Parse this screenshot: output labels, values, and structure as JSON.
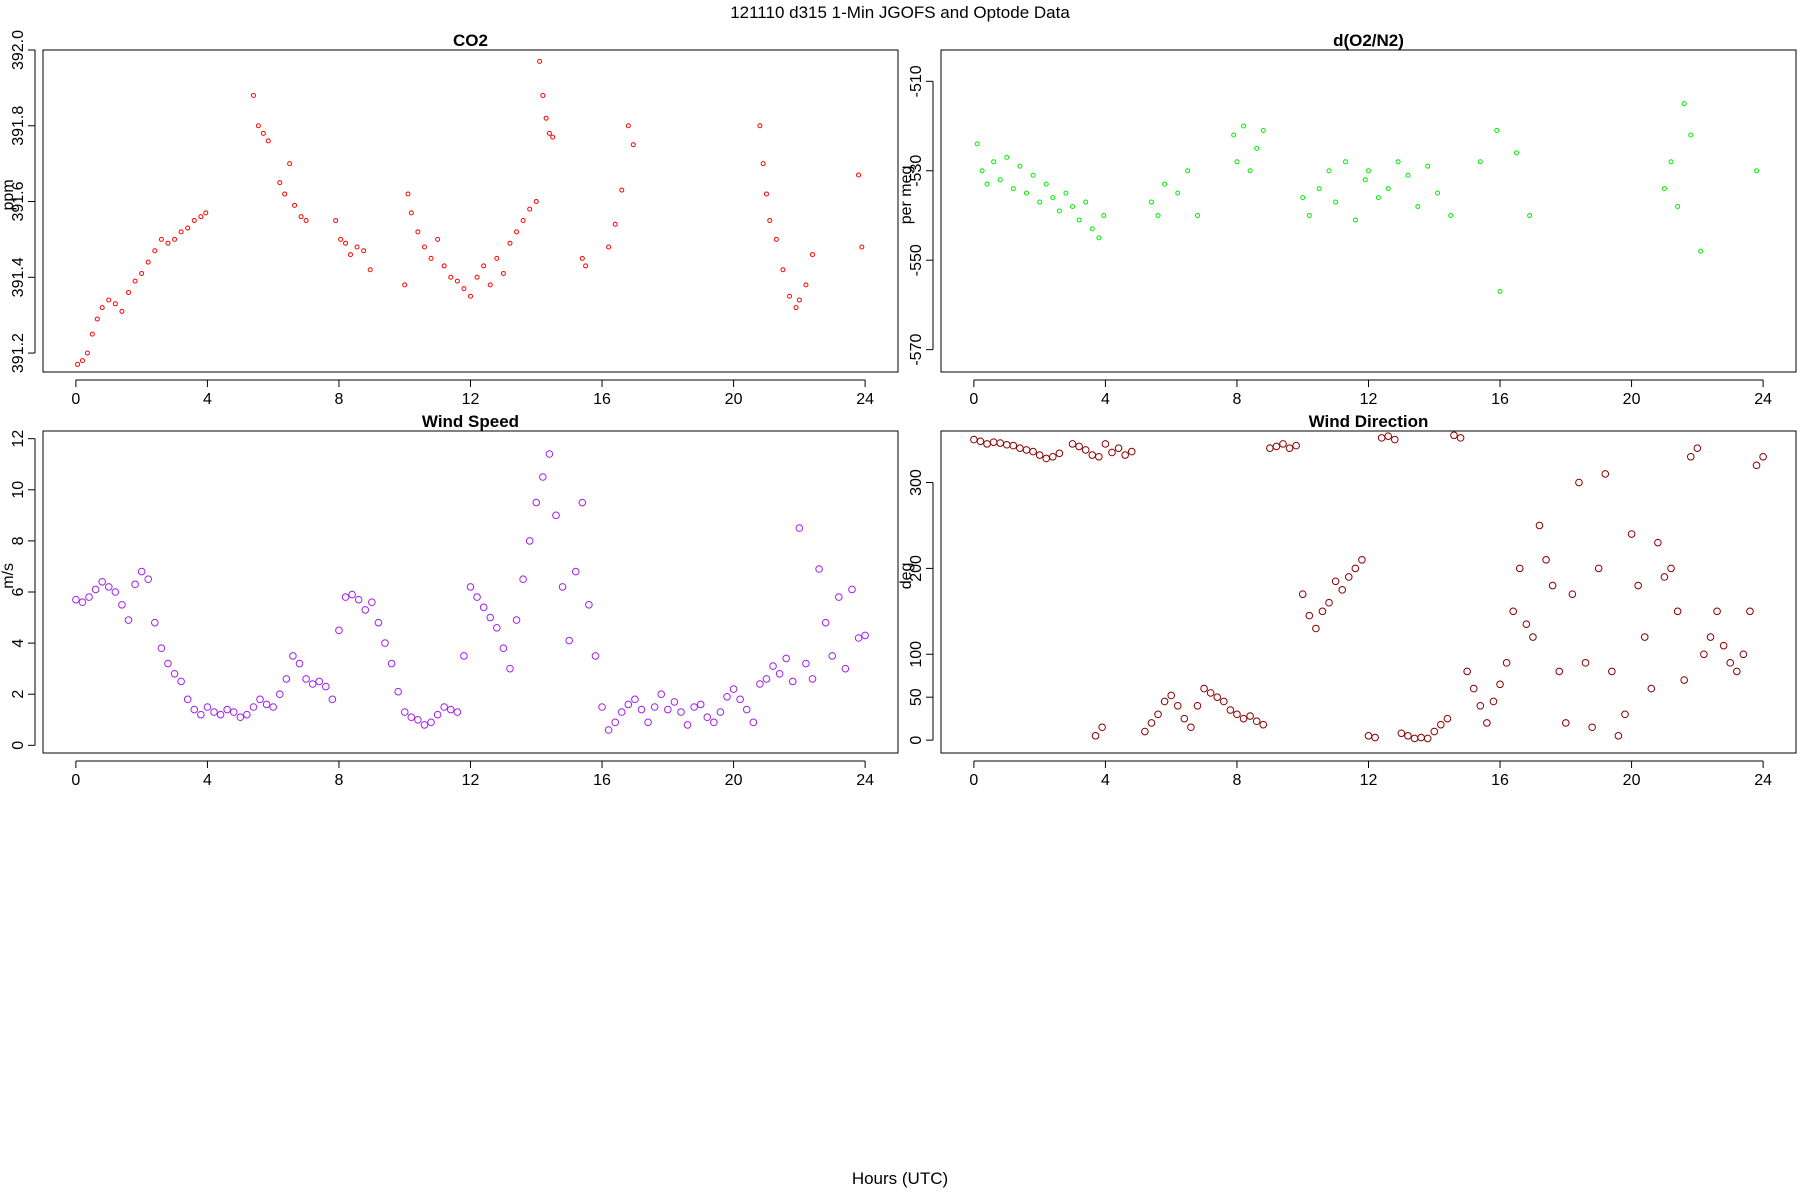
{
  "figure": {
    "title": "121110   d315   1-Min  JGOFS and Optode Data",
    "xlabel": "Hours (UTC)"
  },
  "chart_data": [
    {
      "type": "scatter",
      "title": "CO2",
      "ylabel": "ppm",
      "xlim": [
        -1,
        25
      ],
      "ylim": [
        391.15,
        392.0
      ],
      "xticks": [
        0,
        4,
        8,
        12,
        16,
        20,
        24
      ],
      "yticks": [
        391.2,
        391.4,
        391.6,
        391.8,
        392.0
      ],
      "ytick_labels": [
        "391.2",
        "391.4",
        "391.6",
        "391.8",
        "392.0"
      ],
      "color": "#ff0000",
      "marker_radius": 2,
      "series": [
        {
          "x": [
            0.05,
            0.2,
            0.35,
            0.5,
            0.65,
            0.8,
            1.0,
            1.2,
            1.4,
            1.6,
            1.8,
            2.0,
            2.2,
            2.4,
            2.6,
            2.8,
            3.0,
            3.2,
            3.4,
            3.6,
            3.8,
            3.95,
            5.4,
            5.55,
            5.7,
            5.85,
            6.2,
            6.35,
            6.5,
            6.65,
            6.85,
            7.0,
            7.9,
            8.05,
            8.2,
            8.35,
            8.55,
            8.75,
            8.95,
            10.0,
            10.1,
            10.2,
            10.4,
            10.6,
            10.8,
            11.0,
            11.2,
            11.4,
            11.6,
            11.8,
            12.0,
            12.2,
            12.4,
            12.6,
            12.8,
            13.0,
            13.2,
            13.4,
            13.6,
            13.8,
            14.0,
            14.1,
            14.2,
            14.3,
            14.4,
            14.5,
            15.4,
            15.5,
            16.2,
            16.4,
            16.6,
            16.8,
            16.95,
            20.8,
            20.9,
            21.0,
            21.1,
            21.3,
            21.5,
            21.7,
            21.9,
            22.0,
            22.2,
            22.4,
            23.8,
            23.9
          ],
          "y": [
            391.17,
            391.18,
            391.2,
            391.25,
            391.29,
            391.32,
            391.34,
            391.33,
            391.31,
            391.36,
            391.39,
            391.41,
            391.44,
            391.47,
            391.5,
            391.49,
            391.5,
            391.52,
            391.53,
            391.55,
            391.56,
            391.57,
            391.88,
            391.8,
            391.78,
            391.76,
            391.65,
            391.62,
            391.7,
            391.59,
            391.56,
            391.55,
            391.55,
            391.5,
            391.49,
            391.46,
            391.48,
            391.47,
            391.42,
            391.38,
            391.62,
            391.57,
            391.52,
            391.48,
            391.45,
            391.5,
            391.43,
            391.4,
            391.39,
            391.37,
            391.35,
            391.4,
            391.43,
            391.38,
            391.45,
            391.41,
            391.49,
            391.52,
            391.55,
            391.58,
            391.6,
            391.97,
            391.88,
            391.82,
            391.78,
            391.77,
            391.45,
            391.43,
            391.48,
            391.54,
            391.63,
            391.8,
            391.75,
            391.8,
            391.7,
            391.62,
            391.55,
            391.5,
            391.42,
            391.35,
            391.32,
            391.34,
            391.38,
            391.46,
            391.67,
            391.48
          ]
        }
      ]
    },
    {
      "type": "scatter",
      "title": "d(O2/N2)",
      "ylabel": "per meg",
      "xlim": [
        -1,
        25
      ],
      "ylim": [
        -575,
        -503
      ],
      "xticks": [
        0,
        4,
        8,
        12,
        16,
        20,
        24
      ],
      "yticks": [
        -510,
        -530,
        -550,
        -570
      ],
      "ytick_labels": [
        "-510",
        "-530",
        "-550",
        "-570"
      ],
      "color": "#00ee00",
      "marker_radius": 2,
      "series": [
        {
          "x": [
            0.1,
            0.25,
            0.4,
            0.6,
            0.8,
            1.0,
            1.2,
            1.4,
            1.6,
            1.8,
            2.0,
            2.2,
            2.4,
            2.6,
            2.8,
            3.0,
            3.2,
            3.4,
            3.6,
            3.8,
            3.95,
            5.4,
            5.6,
            5.8,
            6.2,
            6.5,
            6.8,
            7.9,
            8.0,
            8.2,
            8.4,
            8.6,
            8.8,
            10.0,
            10.2,
            10.5,
            10.8,
            11.0,
            11.3,
            11.6,
            11.9,
            12.0,
            12.3,
            12.6,
            12.9,
            13.2,
            13.5,
            13.8,
            14.1,
            14.5,
            15.4,
            15.9,
            16.0,
            16.5,
            16.9,
            21.0,
            21.2,
            21.4,
            21.6,
            21.8,
            22.1,
            23.8
          ],
          "y": [
            -524,
            -530,
            -533,
            -528,
            -532,
            -527,
            -534,
            -529,
            -535,
            -531,
            -537,
            -533,
            -536,
            -539,
            -535,
            -538,
            -541,
            -537,
            -543,
            -545,
            -540,
            -537,
            -540,
            -533,
            -535,
            -530,
            -540,
            -522,
            -528,
            -520,
            -530,
            -525,
            -521,
            -536,
            -540,
            -534,
            -530,
            -537,
            -528,
            -541,
            -532,
            -530,
            -536,
            -534,
            -528,
            -531,
            -538,
            -529,
            -535,
            -540,
            -528,
            -521,
            -557,
            -526,
            -540,
            -534,
            -528,
            -538,
            -515,
            -522,
            -548,
            -530
          ]
        }
      ]
    },
    {
      "type": "scatter",
      "title": "Wind Speed",
      "ylabel": "m/s",
      "xlim": [
        -1,
        25
      ],
      "ylim": [
        -0.3,
        12.3
      ],
      "xticks": [
        0,
        4,
        8,
        12,
        16,
        20,
        24
      ],
      "yticks": [
        0,
        2,
        4,
        6,
        8,
        10,
        12
      ],
      "ytick_labels": [
        "0",
        "2",
        "4",
        "6",
        "8",
        "10",
        "12"
      ],
      "color": "#a020f0",
      "marker_radius": 3.3,
      "series": [
        {
          "x": [
            0.0,
            0.2,
            0.4,
            0.6,
            0.8,
            1.0,
            1.2,
            1.4,
            1.6,
            1.8,
            2.0,
            2.2,
            2.4,
            2.6,
            2.8,
            3.0,
            3.2,
            3.4,
            3.6,
            3.8,
            4.0,
            4.2,
            4.4,
            4.6,
            4.8,
            5.0,
            5.2,
            5.4,
            5.6,
            5.8,
            6.0,
            6.2,
            6.4,
            6.6,
            6.8,
            7.0,
            7.2,
            7.4,
            7.6,
            7.8,
            8.0,
            8.2,
            8.4,
            8.6,
            8.8,
            9.0,
            9.2,
            9.4,
            9.6,
            9.8,
            10.0,
            10.2,
            10.4,
            10.6,
            10.8,
            11.0,
            11.2,
            11.4,
            11.6,
            11.8,
            12.0,
            12.2,
            12.4,
            12.6,
            12.8,
            13.0,
            13.2,
            13.4,
            13.6,
            13.8,
            14.0,
            14.2,
            14.4,
            14.6,
            14.8,
            15.0,
            15.2,
            15.4,
            15.6,
            15.8,
            16.0,
            16.2,
            16.4,
            16.6,
            16.8,
            17.0,
            17.2,
            17.4,
            17.6,
            17.8,
            18.0,
            18.2,
            18.4,
            18.6,
            18.8,
            19.0,
            19.2,
            19.4,
            19.6,
            19.8,
            20.0,
            20.2,
            20.4,
            20.6,
            20.8,
            21.0,
            21.2,
            21.4,
            21.6,
            21.8,
            22.0,
            22.2,
            22.4,
            22.6,
            22.8,
            23.0,
            23.2,
            23.4,
            23.6,
            23.8,
            24.0
          ],
          "y": [
            5.7,
            5.6,
            5.8,
            6.1,
            6.4,
            6.2,
            6.0,
            5.5,
            4.9,
            6.3,
            6.8,
            6.5,
            4.8,
            3.8,
            3.2,
            2.8,
            2.5,
            1.8,
            1.4,
            1.2,
            1.5,
            1.3,
            1.2,
            1.4,
            1.3,
            1.1,
            1.2,
            1.5,
            1.8,
            1.6,
            1.5,
            2.0,
            2.6,
            3.5,
            3.2,
            2.6,
            2.4,
            2.5,
            2.3,
            1.8,
            4.5,
            5.8,
            5.9,
            5.7,
            5.3,
            5.6,
            4.8,
            4.0,
            3.2,
            2.1,
            1.3,
            1.1,
            1.0,
            0.8,
            0.9,
            1.2,
            1.5,
            1.4,
            1.3,
            3.5,
            6.2,
            5.8,
            5.4,
            5.0,
            4.6,
            3.8,
            3.0,
            4.9,
            6.5,
            8.0,
            9.5,
            10.5,
            11.4,
            9.0,
            6.2,
            4.1,
            6.8,
            9.5,
            5.5,
            3.5,
            1.5,
            0.6,
            0.9,
            1.3,
            1.6,
            1.8,
            1.4,
            0.9,
            1.5,
            2.0,
            1.4,
            1.7,
            1.3,
            0.8,
            1.5,
            1.6,
            1.1,
            0.9,
            1.3,
            1.9,
            2.2,
            1.8,
            1.4,
            0.9,
            2.4,
            2.6,
            3.1,
            2.8,
            3.4,
            2.5,
            8.5,
            3.2,
            2.6,
            6.9,
            4.8,
            3.5,
            5.8,
            3.0,
            6.1,
            4.2,
            4.3
          ]
        }
      ]
    },
    {
      "type": "scatter",
      "title": "Wind Direction",
      "ylabel": "deg",
      "xlim": [
        -1,
        25
      ],
      "ylim": [
        -15,
        360
      ],
      "xticks": [
        0,
        4,
        8,
        12,
        16,
        20,
        24
      ],
      "yticks": [
        0,
        50,
        100,
        200,
        300
      ],
      "ytick_labels": [
        "0",
        "50",
        "100",
        "200",
        "300"
      ],
      "color": "#8b0000",
      "marker_radius": 3.3,
      "series": [
        {
          "x": [
            0.0,
            0.2,
            0.4,
            0.6,
            0.8,
            1.0,
            1.2,
            1.4,
            1.6,
            1.8,
            2.0,
            2.2,
            2.4,
            2.6,
            3.0,
            3.2,
            3.4,
            3.6,
            3.8,
            3.7,
            3.9,
            4.0,
            4.2,
            4.4,
            4.6,
            4.8,
            5.2,
            5.4,
            5.6,
            5.8,
            6.0,
            6.2,
            6.4,
            6.6,
            6.8,
            7.0,
            7.2,
            7.4,
            7.6,
            7.8,
            8.0,
            8.2,
            8.4,
            8.6,
            8.8,
            9.0,
            9.2,
            9.4,
            9.6,
            9.8,
            10.0,
            10.2,
            10.4,
            10.6,
            10.8,
            11.0,
            11.2,
            11.4,
            11.6,
            11.8,
            12.0,
            12.2,
            12.4,
            12.6,
            12.8,
            13.0,
            13.2,
            13.4,
            13.6,
            13.8,
            14.0,
            14.2,
            14.4,
            14.6,
            14.8,
            15.0,
            15.2,
            15.4,
            15.6,
            15.8,
            16.0,
            16.2,
            16.4,
            16.6,
            16.8,
            17.0,
            17.2,
            17.4,
            17.6,
            17.8,
            18.0,
            18.2,
            18.4,
            18.6,
            18.8,
            19.0,
            19.2,
            19.4,
            19.6,
            19.8,
            20.0,
            20.2,
            20.4,
            20.6,
            20.8,
            21.0,
            21.2,
            21.4,
            21.6,
            21.8,
            22.0,
            22.2,
            22.4,
            22.6,
            22.8,
            23.0,
            23.2,
            23.4,
            23.6,
            23.8,
            24.0
          ],
          "y": [
            350,
            348,
            345,
            347,
            346,
            344,
            343,
            340,
            338,
            336,
            332,
            328,
            330,
            334,
            345,
            342,
            338,
            332,
            330,
            5,
            15,
            345,
            335,
            340,
            332,
            336,
            10,
            20,
            30,
            45,
            52,
            40,
            25,
            15,
            40,
            60,
            55,
            50,
            45,
            35,
            30,
            25,
            28,
            22,
            18,
            340,
            342,
            345,
            340,
            343,
            170,
            145,
            130,
            150,
            160,
            185,
            175,
            190,
            200,
            210,
            5,
            3,
            352,
            354,
            350,
            8,
            5,
            2,
            3,
            2,
            10,
            18,
            25,
            355,
            352,
            80,
            60,
            40,
            20,
            45,
            65,
            90,
            150,
            200,
            135,
            120,
            250,
            210,
            180,
            80,
            20,
            170,
            300,
            90,
            15,
            200,
            310,
            80,
            5,
            30,
            240,
            180,
            120,
            60,
            230,
            190,
            200,
            150,
            70,
            330,
            340,
            100,
            120,
            150,
            110,
            90,
            80,
            100,
            150,
            320,
            330
          ]
        }
      ]
    }
  ]
}
